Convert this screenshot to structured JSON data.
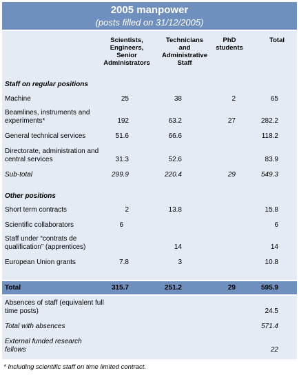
{
  "title": "2005 manpower",
  "subtitle": "(posts filled on 31/12/2005)",
  "columns": {
    "c1": "Scientists, Engineers, Senior Administrators",
    "c2": "Technicians and Administrative Staff",
    "c3": "PhD students",
    "c4": "Total"
  },
  "sections": {
    "regular": "Staff on regular positions",
    "other": "Other positions"
  },
  "rows": {
    "machine": {
      "label": "Machine",
      "c1": "25",
      "c2": "38",
      "c3": "2",
      "c4": "65"
    },
    "beamlines": {
      "label": "Beamlines, instruments and experiments*",
      "c1": "192",
      "c2": "63.2",
      "c3": "27",
      "c4": "282.2"
    },
    "general": {
      "label": "General technical services",
      "c1": "51.6",
      "c2": "66.6",
      "c3": "",
      "c4": "118.2"
    },
    "directorate": {
      "label": "Directorate, administration and central services",
      "c1": "31.3",
      "c2": "52.6",
      "c3": "",
      "c4": "83.9"
    },
    "subtotal": {
      "label": "Sub-total",
      "c1": "299.9",
      "c2": "220.4",
      "c3": "29",
      "c4": "549.3"
    },
    "shortterm": {
      "label": "Short term contracts",
      "c1": "2",
      "c2": "13.8",
      "c3": "",
      "c4": "15.8"
    },
    "scientific": {
      "label": "Scientific collaborators",
      "c1": "6",
      "c2": "",
      "c3": "",
      "c4": "6"
    },
    "apprentices": {
      "label": "Staff under “contrats de qualification” (apprentices)",
      "c1": "",
      "c2": "14",
      "c3": "",
      "c4": "14"
    },
    "eu": {
      "label": "European Union grants",
      "c1": "7.8",
      "c2": "3",
      "c3": "",
      "c4": "10.8"
    },
    "total": {
      "label": "Total",
      "c1": "315.7",
      "c2": "251.2",
      "c3": "29",
      "c4": "595.9"
    },
    "absences": {
      "label": "Absences of staff (equivalent full time posts)",
      "c4": "24.5"
    },
    "withabs": {
      "label": "Total with absences",
      "c4": "571.4"
    },
    "external": {
      "label": "External funded research fellows",
      "c4": "22"
    }
  },
  "footnote": "* Including scientific staff on time limited contract."
}
